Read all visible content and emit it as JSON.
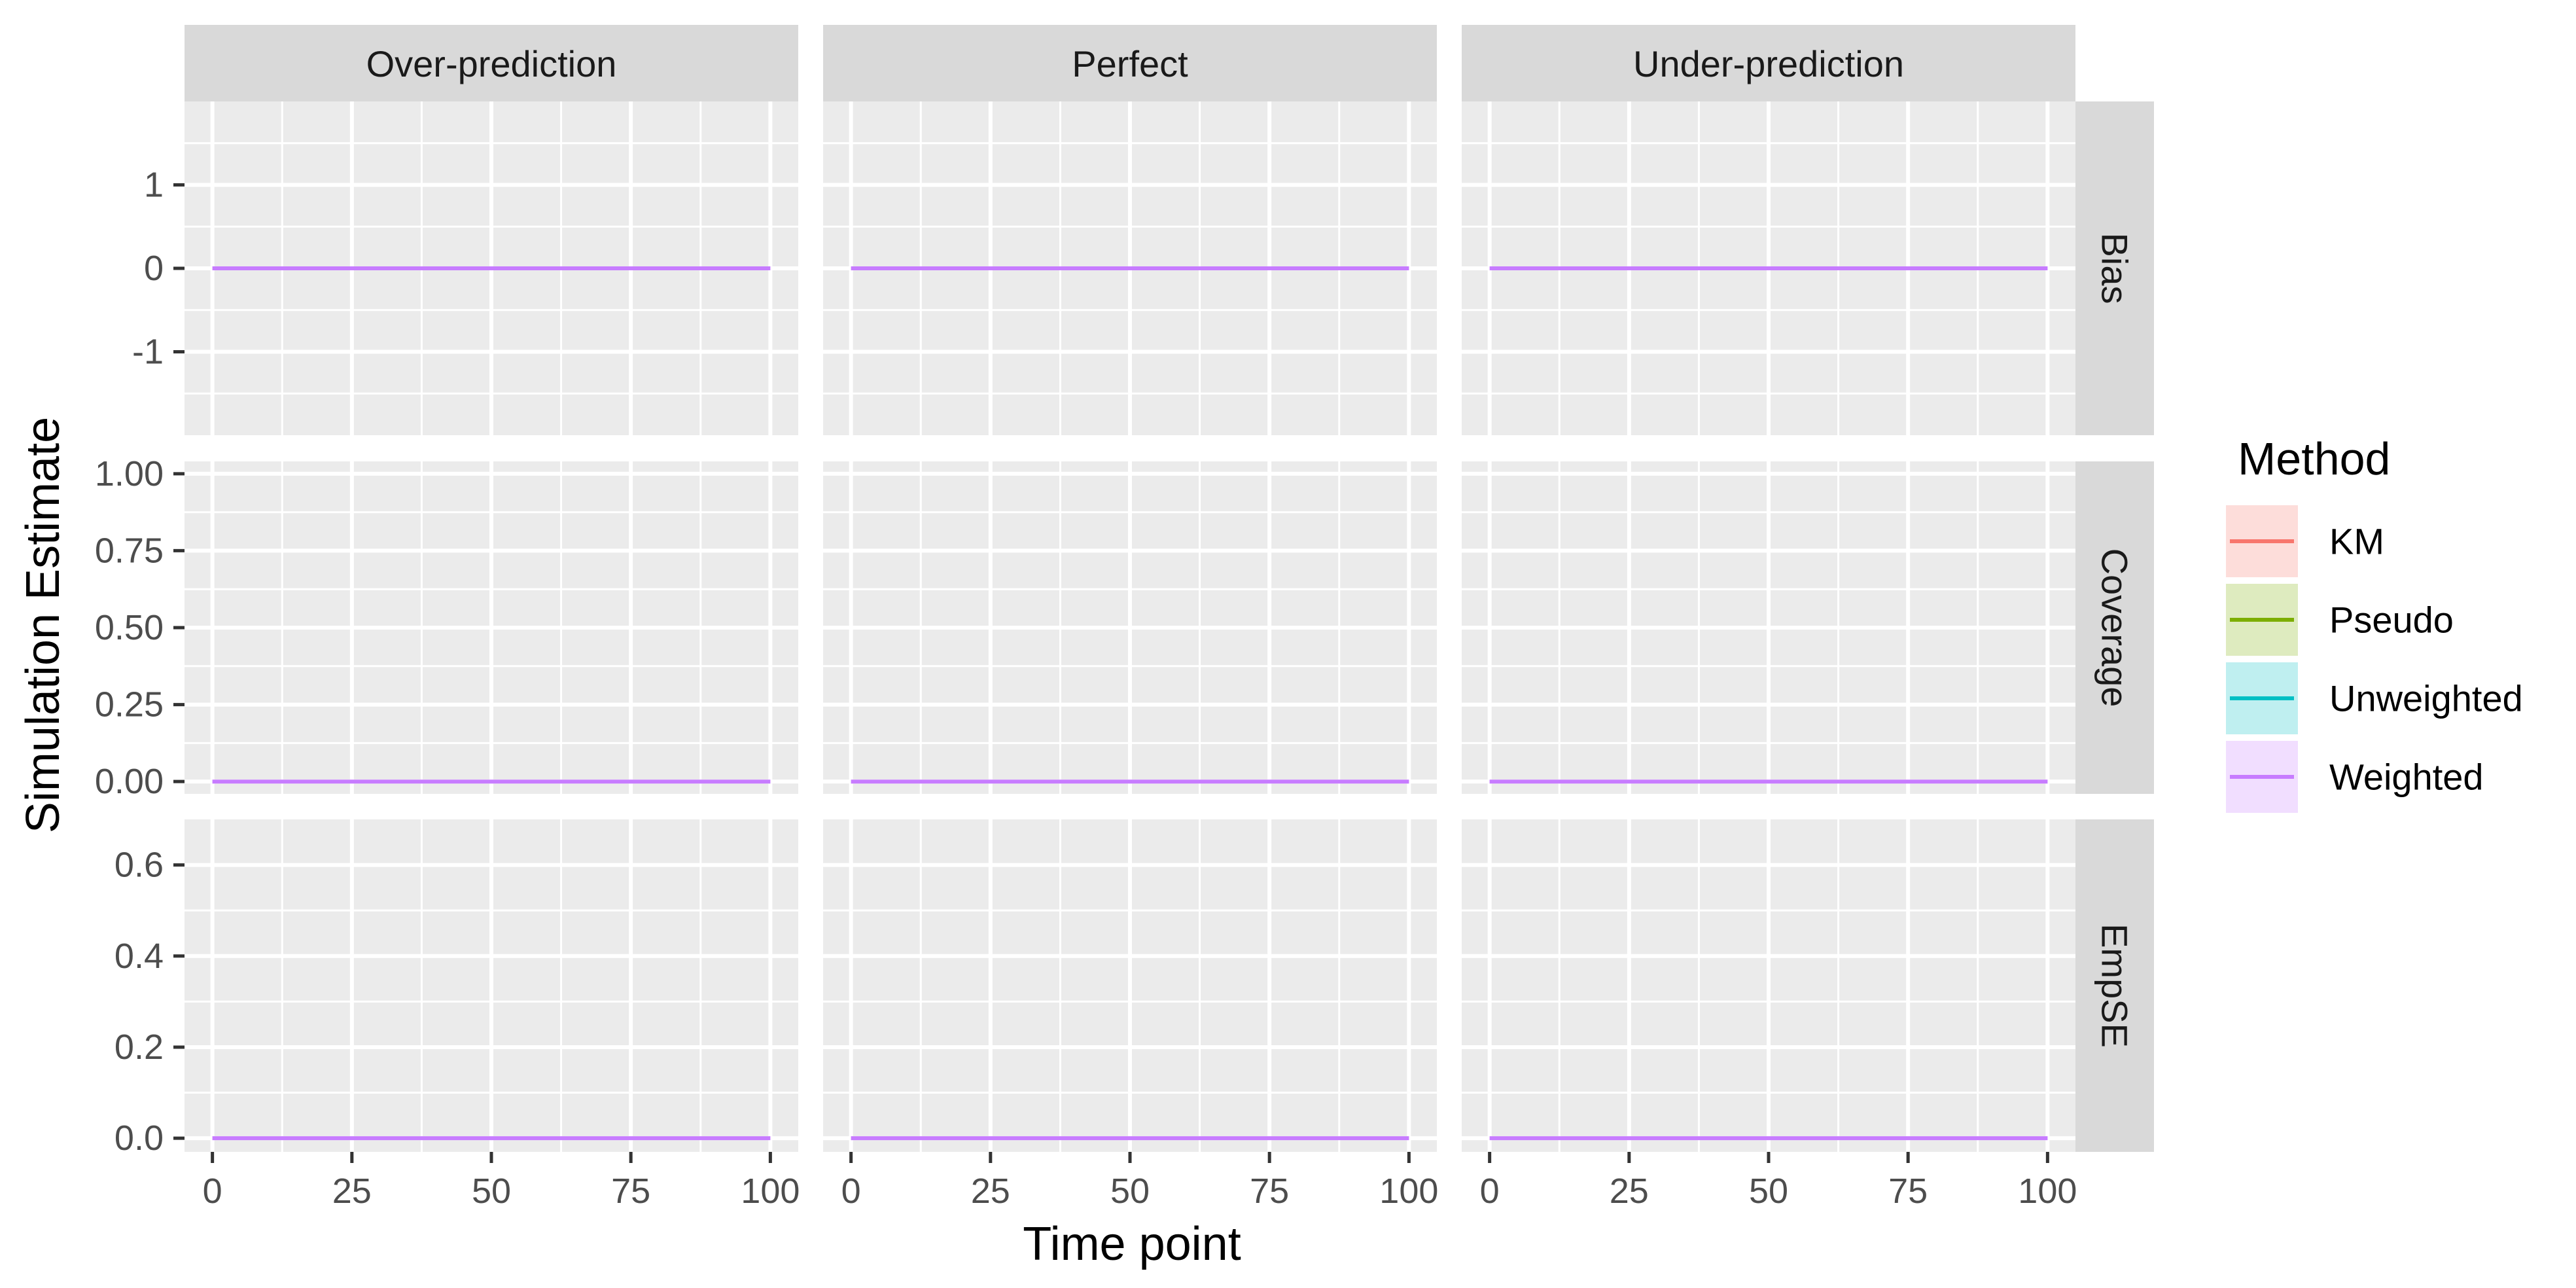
{
  "chart_data": {
    "type": "line",
    "ylabel": "Simulation Estimate",
    "xlabel": "Time point",
    "facet_columns": [
      "Over-prediction",
      "Perfect",
      "Under-prediction"
    ],
    "facet_rows": [
      {
        "name": "Bias",
        "ylim": [
          -2,
          2
        ],
        "yticks": [
          1,
          0,
          -1
        ],
        "ytick_labels": [
          "1",
          "0",
          "-1"
        ]
      },
      {
        "name": "Coverage",
        "ylim": [
          -0.04,
          1.04
        ],
        "yticks": [
          1.0,
          0.75,
          0.5,
          0.25,
          0.0
        ],
        "ytick_labels": [
          "1.00",
          "0.75",
          "0.50",
          "0.25",
          "0.00"
        ]
      },
      {
        "name": "EmpSE",
        "ylim": [
          -0.03,
          0.7
        ],
        "yticks": [
          0.6,
          0.4,
          0.2,
          0.0
        ],
        "ytick_labels": [
          "0.6",
          "0.4",
          "0.2",
          "0.0"
        ]
      }
    ],
    "xlim": [
      -5,
      105
    ],
    "xticks": [
      0,
      25,
      50,
      75,
      100
    ],
    "xtick_labels": [
      "0",
      "25",
      "50",
      "75",
      "100"
    ],
    "legend": {
      "title": "Method",
      "position": "right",
      "entries": [
        {
          "name": "KM",
          "color": "#F8766D"
        },
        {
          "name": "Pseudo",
          "color": "#7CAE00"
        },
        {
          "name": "Unweighted",
          "color": "#00BFC4"
        },
        {
          "name": "Weighted",
          "color": "#C77CFF"
        }
      ]
    },
    "series": [
      {
        "name": "Weighted",
        "facet_row": "Bias",
        "x": [
          0,
          100
        ],
        "y": [
          0,
          0
        ]
      },
      {
        "name": "Weighted",
        "facet_row": "Coverage",
        "x": [
          0,
          100
        ],
        "y": [
          0,
          0
        ]
      },
      {
        "name": "Weighted",
        "facet_row": "EmpSE",
        "x": [
          0,
          100
        ],
        "y": [
          0,
          0
        ]
      }
    ],
    "grid": true,
    "panel_background": "#EBEBEB",
    "strip_background": "#D9D9D9"
  }
}
